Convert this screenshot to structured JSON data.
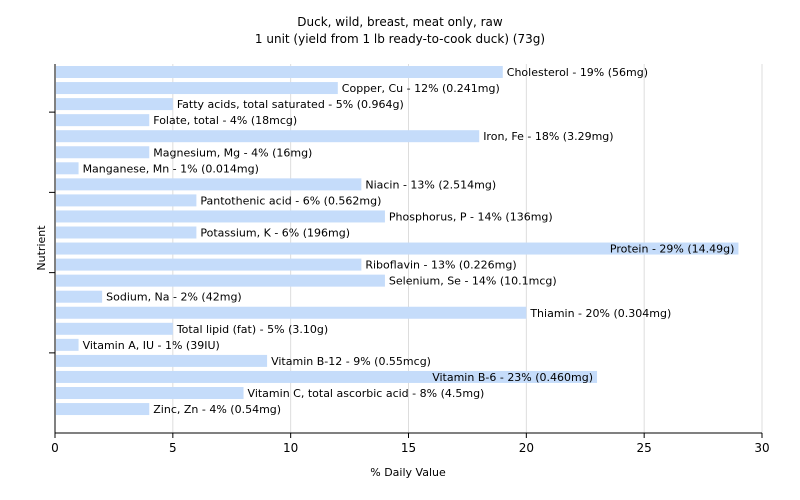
{
  "chart_data": {
    "type": "bar",
    "orientation": "horizontal",
    "title": "Duck, wild, breast, meat only, raw",
    "subtitle": "1 unit (yield from 1 lb ready-to-cook duck) (73g)",
    "xlabel": "% Daily Value",
    "ylabel": "Nutrient",
    "xlim": [
      0,
      30
    ],
    "xticks": [
      "0",
      "5",
      "10",
      "15",
      "20",
      "25",
      "30"
    ],
    "grid": true,
    "bar_color": "#c5dcfa",
    "categories": [
      "Cholesterol",
      "Copper, Cu",
      "Fatty acids, total saturated",
      "Folate, total",
      "Iron, Fe",
      "Magnesium, Mg",
      "Manganese, Mn",
      "Niacin",
      "Pantothenic acid",
      "Phosphorus, P",
      "Potassium, K",
      "Protein",
      "Riboflavin",
      "Selenium, Se",
      "Sodium, Na",
      "Thiamin",
      "Total lipid (fat)",
      "Vitamin A, IU",
      "Vitamin B-12",
      "Vitamin B-6",
      "Vitamin C, total ascorbic acid",
      "Zinc, Zn"
    ],
    "values": [
      19,
      12,
      5,
      4,
      18,
      4,
      1,
      13,
      6,
      14,
      6,
      29,
      13,
      14,
      2,
      20,
      5,
      1,
      9,
      23,
      8,
      4
    ],
    "labels": [
      "Cholesterol - 19% (56mg)",
      "Copper, Cu - 12% (0.241mg)",
      "Fatty acids, total saturated - 5% (0.964g)",
      "Folate, total - 4% (18mcg)",
      "Iron, Fe - 18% (3.29mg)",
      "Magnesium, Mg - 4% (16mg)",
      "Manganese, Mn - 1% (0.014mg)",
      "Niacin - 13% (2.514mg)",
      "Pantothenic acid - 6% (0.562mg)",
      "Phosphorus, P - 14% (136mg)",
      "Potassium, K - 6% (196mg)",
      "Protein - 29% (14.49g)",
      "Riboflavin - 13% (0.226mg)",
      "Selenium, Se - 14% (10.1mcg)",
      "Sodium, Na - 2% (42mg)",
      "Thiamin - 20% (0.304mg)",
      "Total lipid (fat) - 5% (3.10g)",
      "Vitamin A, IU - 1% (39IU)",
      "Vitamin B-12 - 9% (0.55mcg)",
      "Vitamin B-6 - 23% (0.460mg)",
      "Vitamin C, total ascorbic acid - 8% (4.5mg)",
      "Zinc, Zn - 4% (0.54mg)"
    ]
  }
}
